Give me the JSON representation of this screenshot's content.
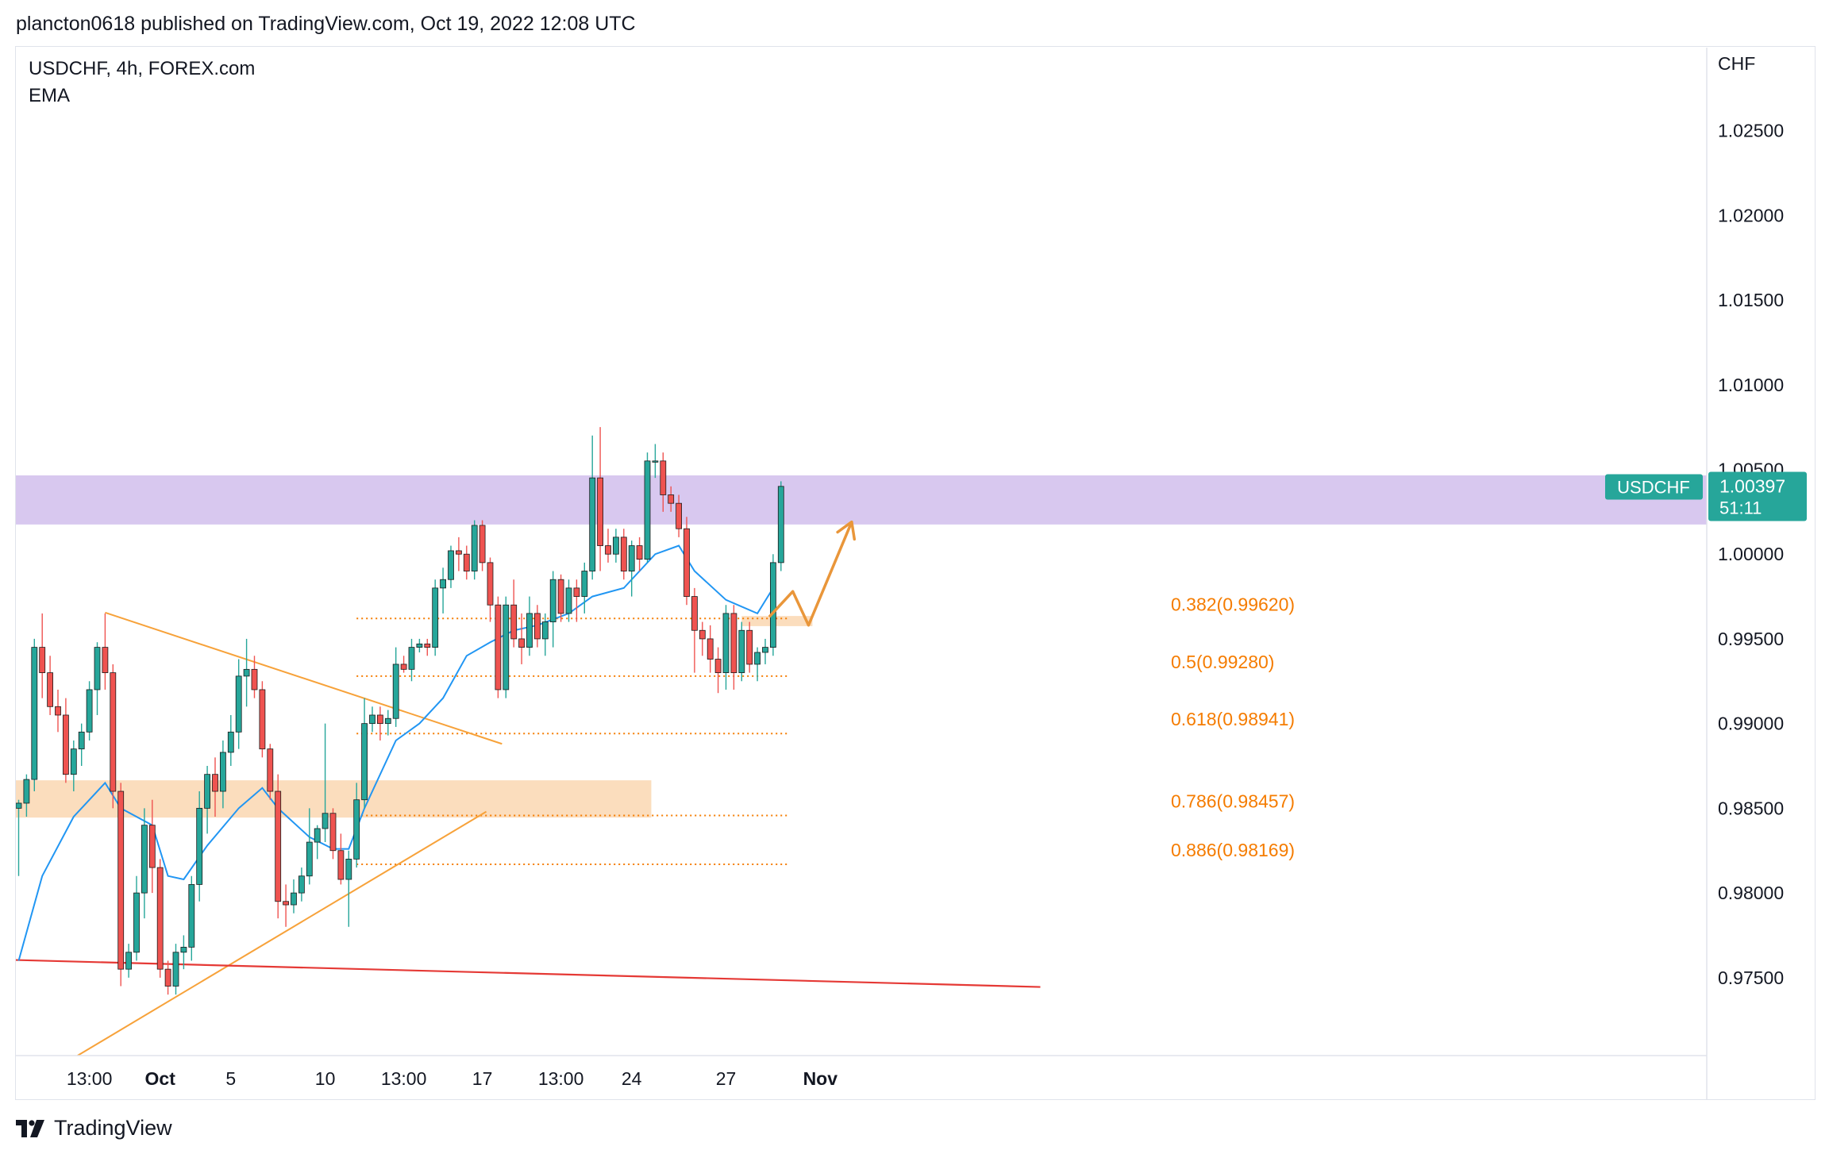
{
  "header": {
    "text": "plancton0618 published on TradingView.com, Oct 19, 2022 12:08 UTC"
  },
  "legend": {
    "symbol_line": "USDCHF, 4h, FOREX.com",
    "indicator": "EMA"
  },
  "footer": {
    "brand": "TradingView"
  },
  "colors": {
    "up": "#26a69a",
    "down": "#ef5350",
    "ema": "#2196f3",
    "fib": "#f57c00",
    "zone_purple": "#d8c8ef",
    "zone_orange": "#fbd9b6",
    "trend": "#f7a23a",
    "support": "#e53935",
    "price_label": "#26a69a"
  },
  "chart_data": {
    "type": "candlestick",
    "symbol": "USDCHF",
    "timeframe": "4h",
    "currency_label": "CHF",
    "ylim": [
      0.9704,
      1.0299
    ],
    "y_ticks": [
      "1.02500",
      "1.02000",
      "1.01500",
      "1.01000",
      "1.00500",
      "1.00000",
      "0.99500",
      "0.99000",
      "0.98500",
      "0.98000",
      "0.97500"
    ],
    "x_ticks": [
      {
        "label": "13:00",
        "bar": 9,
        "bold": false
      },
      {
        "label": "Oct",
        "bar": 18,
        "bold": true
      },
      {
        "label": "5",
        "bar": 27,
        "bold": false
      },
      {
        "label": "10",
        "bar": 39,
        "bold": false
      },
      {
        "label": "13:00",
        "bar": 49,
        "bold": false
      },
      {
        "label": "17",
        "bar": 59,
        "bold": false
      },
      {
        "label": "13:00",
        "bar": 69,
        "bold": false
      },
      {
        "label": "24",
        "bar": 78,
        "bold": false
      },
      {
        "label": "27",
        "bar": 90,
        "bold": false
      },
      {
        "label": "Nov",
        "bar": 102,
        "bold": true
      }
    ],
    "candles": [
      [
        0.985,
        0.9855,
        0.981,
        0.9853
      ],
      [
        0.9853,
        0.987,
        0.9845,
        0.9867
      ],
      [
        0.9867,
        0.995,
        0.986,
        0.9945
      ],
      [
        0.9945,
        0.9965,
        0.9915,
        0.993
      ],
      [
        0.993,
        0.994,
        0.9905,
        0.991
      ],
      [
        0.991,
        0.992,
        0.9895,
        0.9905
      ],
      [
        0.9905,
        0.9915,
        0.9865,
        0.987
      ],
      [
        0.987,
        0.989,
        0.986,
        0.9885
      ],
      [
        0.9885,
        0.99,
        0.9875,
        0.9895
      ],
      [
        0.9895,
        0.9925,
        0.989,
        0.992
      ],
      [
        0.992,
        0.9948,
        0.9905,
        0.9945
      ],
      [
        0.9945,
        0.9965,
        0.992,
        0.993
      ],
      [
        0.993,
        0.9935,
        0.985,
        0.986
      ],
      [
        0.986,
        0.9865,
        0.9745,
        0.9755
      ],
      [
        0.9755,
        0.977,
        0.975,
        0.9765
      ],
      [
        0.9765,
        0.981,
        0.976,
        0.98
      ],
      [
        0.98,
        0.985,
        0.9785,
        0.984
      ],
      [
        0.984,
        0.9855,
        0.98,
        0.9815
      ],
      [
        0.9815,
        0.982,
        0.975,
        0.9755
      ],
      [
        0.9755,
        0.976,
        0.974,
        0.9745
      ],
      [
        0.9745,
        0.977,
        0.974,
        0.9765
      ],
      [
        0.9765,
        0.9775,
        0.9755,
        0.9768
      ],
      [
        0.9768,
        0.981,
        0.976,
        0.9805
      ],
      [
        0.9805,
        0.986,
        0.9795,
        0.985
      ],
      [
        0.985,
        0.9875,
        0.9835,
        0.987
      ],
      [
        0.987,
        0.988,
        0.9845,
        0.986
      ],
      [
        0.986,
        0.989,
        0.985,
        0.9883
      ],
      [
        0.9883,
        0.9905,
        0.9875,
        0.9895
      ],
      [
        0.9895,
        0.9938,
        0.9885,
        0.9928
      ],
      [
        0.9928,
        0.995,
        0.991,
        0.9932
      ],
      [
        0.9932,
        0.994,
        0.9915,
        0.992
      ],
      [
        0.992,
        0.9925,
        0.988,
        0.9885
      ],
      [
        0.9885,
        0.9888,
        0.9855,
        0.986
      ],
      [
        0.986,
        0.987,
        0.9785,
        0.9795
      ],
      [
        0.9795,
        0.9805,
        0.978,
        0.9793
      ],
      [
        0.9793,
        0.9808,
        0.9788,
        0.98
      ],
      [
        0.98,
        0.9815,
        0.9795,
        0.981
      ],
      [
        0.981,
        0.985,
        0.9805,
        0.983
      ],
      [
        0.983,
        0.984,
        0.982,
        0.9838
      ],
      [
        0.9838,
        0.99,
        0.983,
        0.9847
      ],
      [
        0.9847,
        0.985,
        0.982,
        0.9825
      ],
      [
        0.9825,
        0.9835,
        0.9805,
        0.9808
      ],
      [
        0.9808,
        0.9825,
        0.978,
        0.982
      ],
      [
        0.982,
        0.9865,
        0.9815,
        0.9855
      ],
      [
        0.9855,
        0.9915,
        0.985,
        0.99
      ],
      [
        0.99,
        0.991,
        0.9895,
        0.9905
      ],
      [
        0.9905,
        0.991,
        0.989,
        0.99
      ],
      [
        0.99,
        0.9908,
        0.9893,
        0.9903
      ],
      [
        0.9903,
        0.9945,
        0.9898,
        0.9935
      ],
      [
        0.9935,
        0.994,
        0.993,
        0.9932
      ],
      [
        0.9932,
        0.995,
        0.9925,
        0.9945
      ],
      [
        0.9945,
        0.995,
        0.9942,
        0.9947
      ],
      [
        0.9947,
        0.995,
        0.994,
        0.9945
      ],
      [
        0.9945,
        0.9985,
        0.994,
        0.998
      ],
      [
        0.998,
        0.9992,
        0.9965,
        0.9985
      ],
      [
        0.9985,
        1.0005,
        0.998,
        1.0002
      ]
    ],
    "candles_b": [
      [
        1.0002,
        1.001,
        0.999,
        1.0
      ],
      [
        1.0,
        1.0005,
        0.9985,
        0.999
      ],
      [
        0.999,
        1.002,
        0.9985,
        1.0017
      ],
      [
        1.0017,
        1.002,
        0.999,
        0.9995
      ],
      [
        0.9995,
        0.9998,
        0.996,
        0.997
      ],
      [
        0.997,
        0.9975,
        0.9915,
        0.992
      ],
      [
        0.992,
        0.9975,
        0.9915,
        0.997
      ],
      [
        0.997,
        0.9985,
        0.9945,
        0.995
      ],
      [
        0.995,
        0.9965,
        0.9935,
        0.9945
      ],
      [
        0.9945,
        0.9975,
        0.994,
        0.9965
      ],
      [
        0.9965,
        0.997,
        0.9945,
        0.995
      ],
      [
        0.995,
        0.9965,
        0.994,
        0.996
      ],
      [
        0.996,
        0.999,
        0.9945,
        0.9985
      ],
      [
        0.9985,
        0.9988,
        0.996,
        0.9965
      ],
      [
        0.9965,
        0.9985,
        0.996,
        0.998
      ],
      [
        0.998,
        0.9985,
        0.996,
        0.9975
      ],
      [
        0.9975,
        0.9995,
        0.9965,
        0.999
      ],
      [
        0.999,
        1.007,
        0.9985,
        1.0045
      ],
      [
        1.0045,
        1.0075,
        0.999,
        1.0005
      ],
      [
        1.0005,
        1.0015,
        0.9995,
        1.0
      ],
      [
        1.0,
        1.0015,
        0.9995,
        1.001
      ],
      [
        1.001,
        1.0015,
        0.9985,
        0.999
      ],
      [
        0.999,
        1.0008,
        0.9975,
        1.0005
      ],
      [
        1.0005,
        1.001,
        0.999,
        0.9997
      ],
      [
        0.9997,
        1.006,
        0.9995,
        1.0055
      ],
      [
        1.0055,
        1.0065,
        1.0045,
        1.0055
      ],
      [
        1.0055,
        1.006,
        1.0025,
        1.0035
      ],
      [
        1.0035,
        1.004,
        1.0025,
        1.003
      ],
      [
        1.003,
        1.0035,
        1.001,
        1.0015
      ],
      [
        1.0015,
        1.0022,
        0.997,
        0.9975
      ],
      [
        0.9975,
        0.998,
        0.993,
        0.9955
      ],
      [
        0.9955,
        0.996,
        0.994,
        0.995
      ],
      [
        0.995,
        0.9958,
        0.993,
        0.9938
      ],
      [
        0.9938,
        0.9945,
        0.9918,
        0.993
      ],
      [
        0.993,
        0.997,
        0.992,
        0.9965
      ],
      [
        0.9965,
        0.997,
        0.992,
        0.993
      ],
      [
        0.993,
        0.996,
        0.9925,
        0.9955
      ],
      [
        0.9955,
        0.996,
        0.993,
        0.9935
      ],
      [
        0.9935,
        0.9945,
        0.9925,
        0.9942
      ],
      [
        0.9942,
        0.995,
        0.9935,
        0.9945
      ],
      [
        0.9945,
        1.0,
        0.994,
        0.9995
      ],
      [
        0.9995,
        1.0043,
        0.999,
        1.004
      ]
    ],
    "ema": [
      [
        0,
        0.976
      ],
      [
        3,
        0.981
      ],
      [
        7,
        0.9845
      ],
      [
        11,
        0.9865
      ],
      [
        13,
        0.985
      ],
      [
        17,
        0.984
      ],
      [
        19,
        0.981
      ],
      [
        21,
        0.9808
      ],
      [
        24,
        0.9828
      ],
      [
        28,
        0.985
      ],
      [
        31,
        0.9862
      ],
      [
        33,
        0.985
      ],
      [
        37,
        0.9833
      ],
      [
        40,
        0.9826
      ],
      [
        42,
        0.9826
      ],
      [
        44,
        0.985
      ],
      [
        48,
        0.989
      ],
      [
        51,
        0.99
      ],
      [
        54,
        0.9915
      ],
      [
        57,
        0.994
      ],
      [
        60,
        0.9948
      ],
      [
        63,
        0.9955
      ],
      [
        66,
        0.9958
      ],
      [
        70,
        0.9965
      ],
      [
        73,
        0.9975
      ],
      [
        77,
        0.998
      ],
      [
        81,
        1.0
      ],
      [
        84,
        1.0005
      ],
      [
        86,
        0.999
      ],
      [
        90,
        0.9973
      ],
      [
        94,
        0.9965
      ],
      [
        96,
        0.998
      ]
    ],
    "zones": [
      {
        "name": "resistance-zone",
        "y_top": 1.00465,
        "y_bottom": 1.00175,
        "x_from": "start",
        "x_to": "axis",
        "color": "purple"
      },
      {
        "name": "support-zone",
        "y_top": 0.98665,
        "y_bottom": 0.98445,
        "x_from": "start",
        "x_to": 80.5,
        "color": "orange"
      },
      {
        "name": "target-zone",
        "y_top": 0.99635,
        "y_bottom": 0.99575,
        "x_from": 92,
        "x_to": 101,
        "color": "orange"
      }
    ],
    "fib_levels": [
      {
        "label": "0.382(0.99620)",
        "value": 0.9962
      },
      {
        "label": "0.5(0.99280)",
        "value": 0.9928
      },
      {
        "label": "0.618(0.98941)",
        "value": 0.98941
      },
      {
        "label": "0.786(0.98457)",
        "value": 0.98457
      },
      {
        "label": "0.886(0.98169)",
        "value": 0.98169
      }
    ],
    "trendlines": [
      {
        "name": "descending-trendline",
        "from": [
          11,
          0.99655
        ],
        "to": [
          61.5,
          0.9888
        ],
        "color": "trend"
      },
      {
        "name": "ascending-trendline",
        "from": [
          7.5,
          0.9704
        ],
        "to": [
          59.5,
          0.9848
        ],
        "color": "trend"
      },
      {
        "name": "support-line",
        "from": [
          -1,
          0.97605
        ],
        "to": [
          130,
          0.97445
        ],
        "color": "support"
      }
    ],
    "projection": [
      [
        95.5,
        0.9963
      ],
      [
        98.5,
        0.9978
      ],
      [
        100.5,
        0.9958
      ],
      [
        106,
        1.0019
      ]
    ],
    "last_price": {
      "symbol_label": "USDCHF",
      "value": "1.00397",
      "countdown": "51:11",
      "y": 1.00397
    }
  }
}
